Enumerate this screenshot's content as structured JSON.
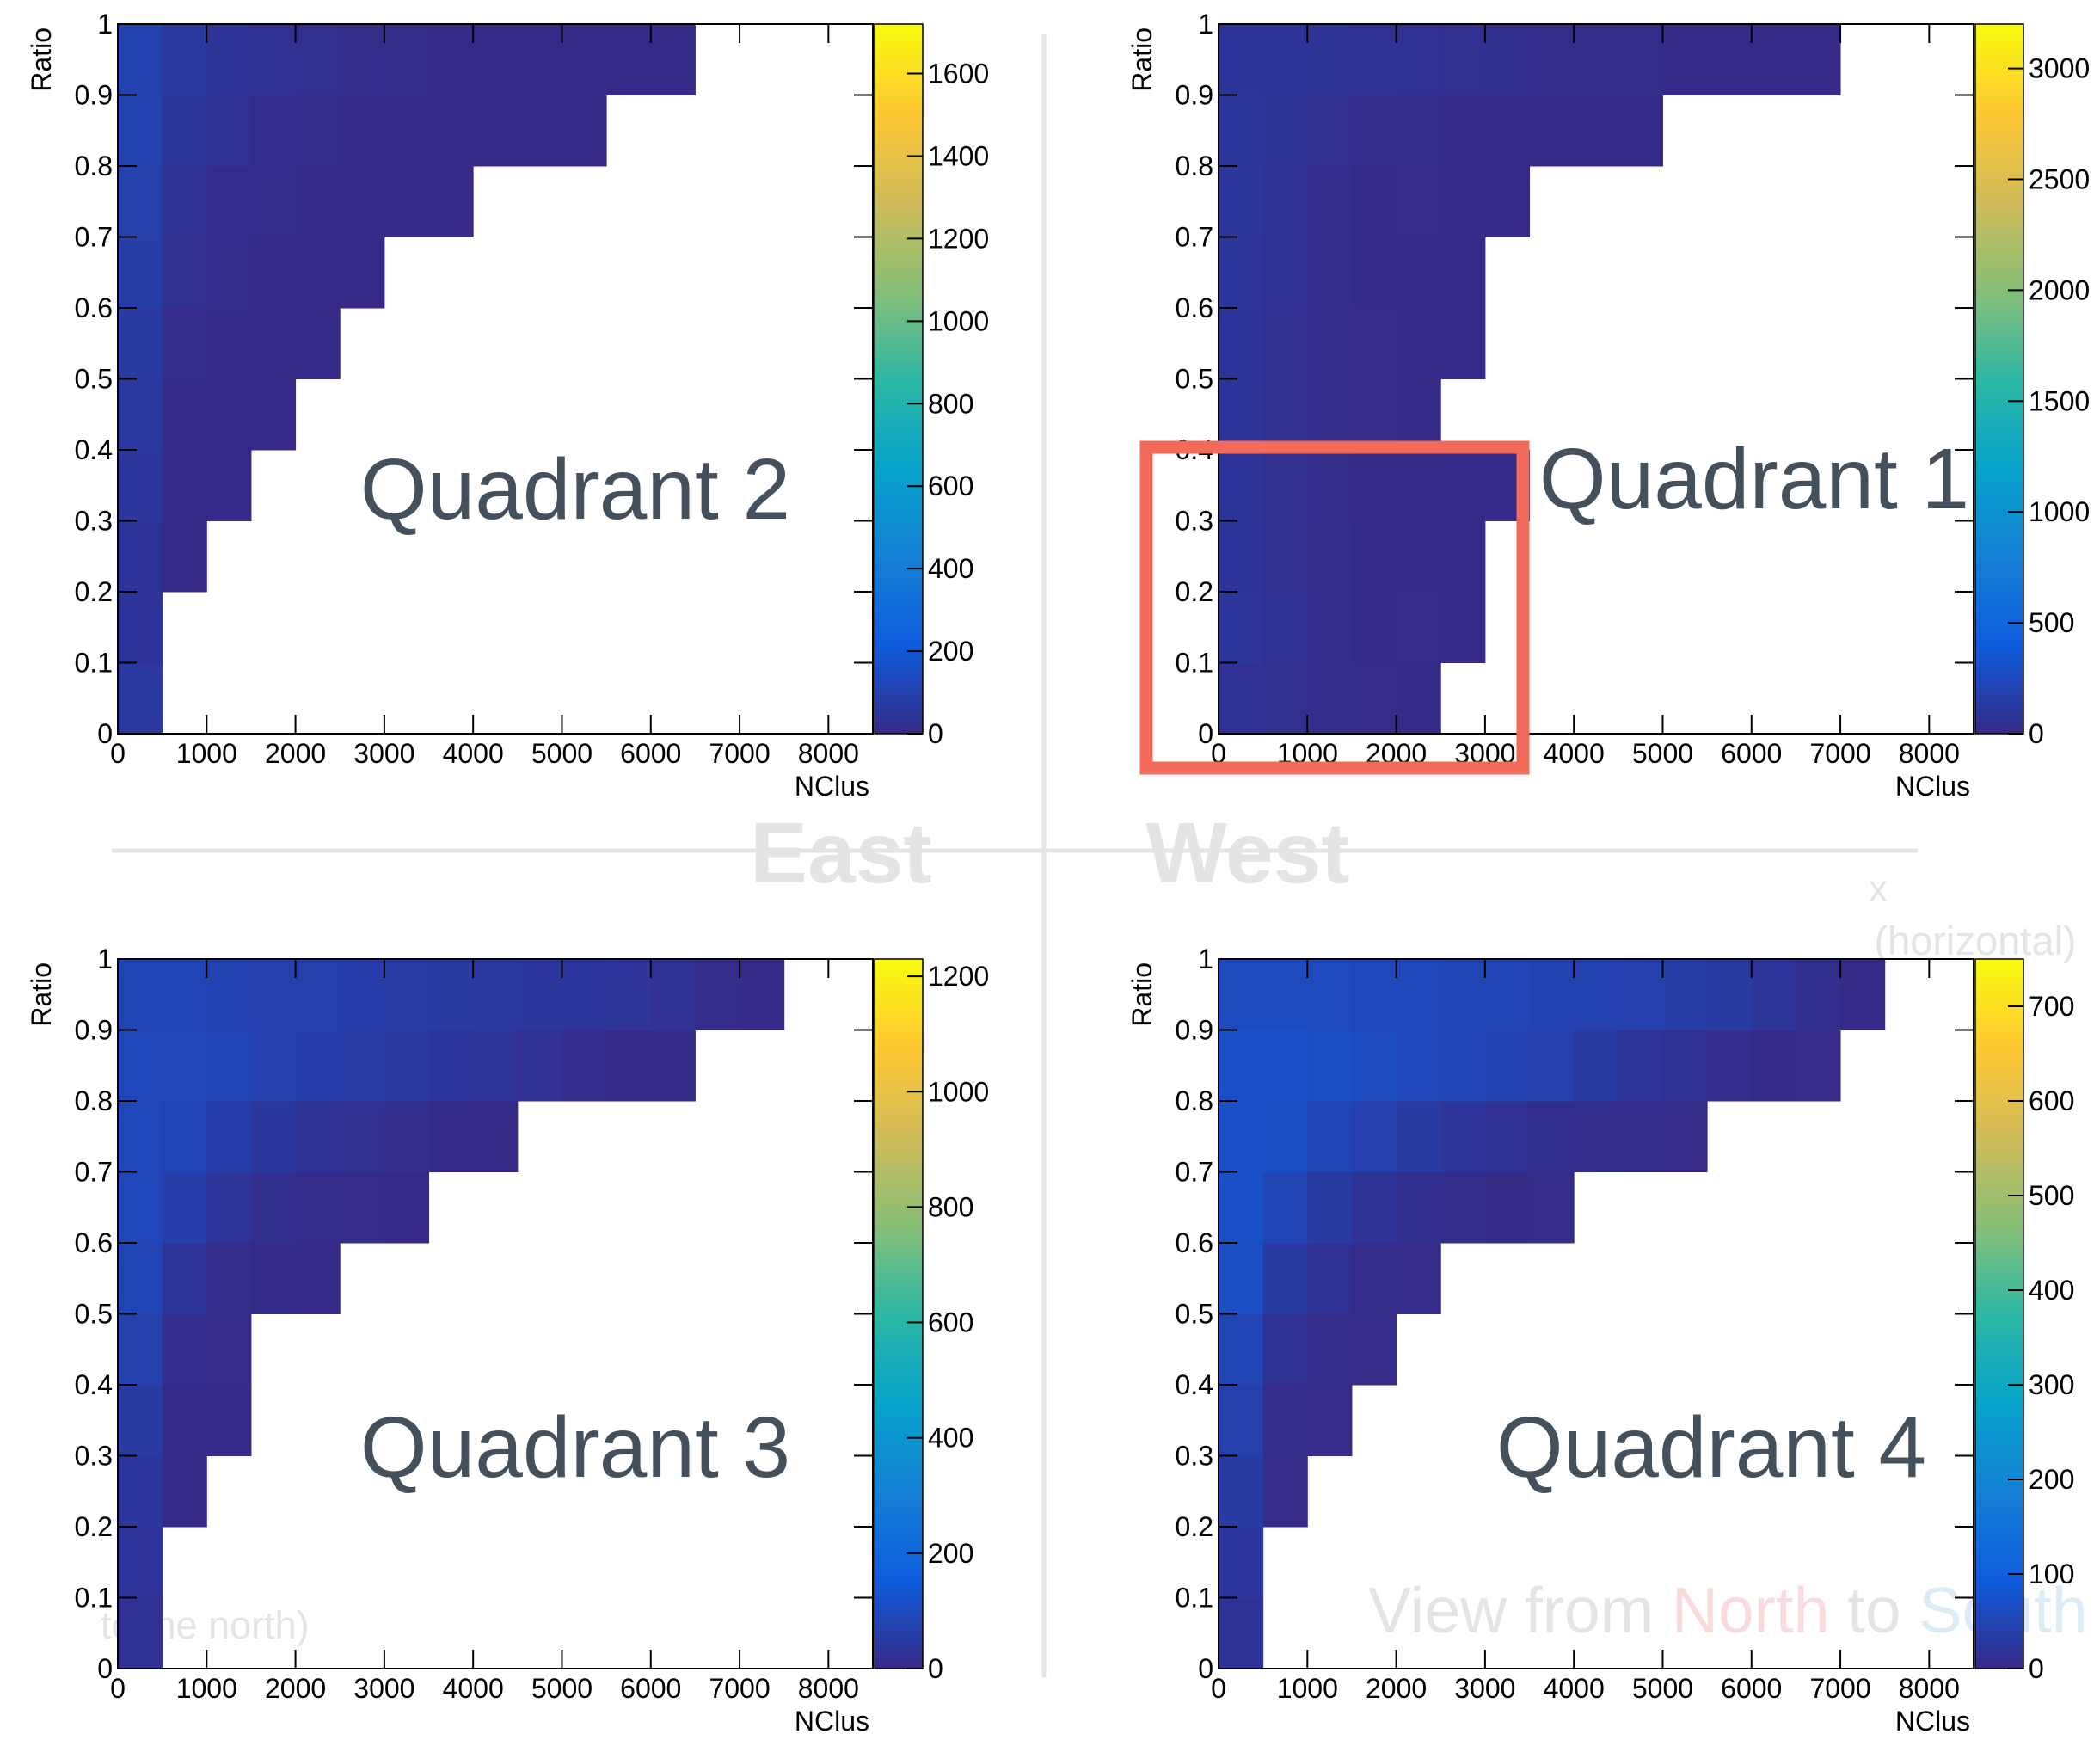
{
  "background": {
    "east": "East",
    "west": "West",
    "x_axis": "x",
    "x_axis_note": "(horizontal)",
    "view_from": "View from",
    "north": "North",
    "to": "to",
    "south": "South",
    "north_note": "to the north)"
  },
  "chart_data": [
    {
      "type": "heatmap",
      "title": "Quadrant 2",
      "xlabel": "NClus",
      "ylabel": "Ratio",
      "xlim": [
        0,
        8500
      ],
      "ylim": [
        0,
        1
      ],
      "xticks": [
        0,
        1000,
        2000,
        3000,
        4000,
        5000,
        6000,
        7000,
        8000
      ],
      "yticks": [
        0,
        0.1,
        0.2,
        0.3,
        0.4,
        0.5,
        0.6,
        0.7,
        0.8,
        0.9,
        1
      ],
      "xbins": [
        0,
        500,
        1000,
        1500,
        2000,
        2500,
        3000,
        3500,
        4000,
        4500,
        5000,
        5500,
        6000,
        6500,
        7000,
        7500,
        8000,
        8500
      ],
      "ybins": [
        0,
        0.1,
        0.2,
        0.3,
        0.4,
        0.5,
        0.6,
        0.7,
        0.8,
        0.9,
        1
      ],
      "counts": [
        [
          60,
          0,
          0,
          0,
          0,
          0,
          0,
          0,
          0,
          0,
          0,
          0,
          0,
          0,
          0,
          0,
          0
        ],
        [
          40,
          0,
          0,
          0,
          0,
          0,
          0,
          0,
          0,
          0,
          0,
          0,
          0,
          0,
          0,
          0,
          0
        ],
        [
          40,
          1,
          0,
          0,
          0,
          0,
          0,
          0,
          0,
          0,
          0,
          0,
          0,
          0,
          0,
          0,
          0
        ],
        [
          50,
          2,
          1,
          0,
          0,
          0,
          0,
          0,
          0,
          0,
          0,
          0,
          0,
          0,
          0,
          0,
          0
        ],
        [
          60,
          5,
          2,
          1,
          0,
          0,
          0,
          0,
          0,
          0,
          0,
          0,
          0,
          0,
          0,
          0,
          0
        ],
        [
          70,
          10,
          4,
          2,
          1,
          0,
          0,
          0,
          0,
          0,
          0,
          0,
          0,
          0,
          0,
          0,
          0
        ],
        [
          80,
          20,
          8,
          4,
          2,
          1,
          0,
          0,
          0,
          0,
          0,
          0,
          0,
          0,
          0,
          0,
          0
        ],
        [
          90,
          30,
          15,
          8,
          5,
          3,
          2,
          1,
          0,
          0,
          0,
          0,
          0,
          0,
          0,
          0,
          0
        ],
        [
          100,
          50,
          30,
          15,
          10,
          6,
          4,
          2,
          2,
          1,
          1,
          0,
          0,
          0,
          0,
          0,
          0
        ],
        [
          100,
          60,
          40,
          30,
          20,
          12,
          8,
          6,
          5,
          4,
          3,
          2,
          1,
          0,
          0,
          0,
          0
        ]
      ],
      "zlim": [
        0,
        1720
      ],
      "zticks": [
        0,
        200,
        400,
        600,
        800,
        1000,
        1200,
        1400,
        1600
      ]
    },
    {
      "type": "heatmap",
      "title": "Quadrant 1",
      "xlabel": "NClus",
      "ylabel": "Ratio",
      "xlim": [
        0,
        8500
      ],
      "ylim": [
        0,
        1
      ],
      "xticks": [
        0,
        1000,
        2000,
        3000,
        4000,
        5000,
        6000,
        7000,
        8000
      ],
      "yticks": [
        0,
        0.1,
        0.2,
        0.3,
        0.4,
        0.5,
        0.6,
        0.7,
        0.8,
        0.9,
        1
      ],
      "xbins": [
        0,
        500,
        1000,
        1500,
        2000,
        2500,
        3000,
        3500,
        4000,
        4500,
        5000,
        5500,
        6000,
        6500,
        7000,
        7500,
        8000,
        8500
      ],
      "ybins": [
        0,
        0.1,
        0.2,
        0.3,
        0.4,
        0.5,
        0.6,
        0.7,
        0.8,
        0.9,
        1
      ],
      "counts": [
        [
          60,
          40,
          20,
          5,
          1,
          0,
          0,
          0,
          0,
          0,
          0,
          0,
          0,
          0,
          0,
          0,
          0
        ],
        [
          90,
          50,
          25,
          10,
          4,
          2,
          0,
          0,
          0,
          0,
          0,
          0,
          0,
          0,
          0,
          0,
          0
        ],
        [
          80,
          45,
          20,
          8,
          3,
          1,
          0,
          0,
          0,
          0,
          0,
          0,
          0,
          0,
          0,
          0,
          0
        ],
        [
          80,
          40,
          15,
          6,
          2,
          1,
          1,
          0,
          0,
          0,
          0,
          0,
          0,
          0,
          0,
          0,
          0
        ],
        [
          80,
          40,
          15,
          5,
          2,
          0,
          0,
          0,
          0,
          0,
          0,
          0,
          0,
          0,
          0,
          0,
          0
        ],
        [
          80,
          45,
          15,
          5,
          2,
          1,
          0,
          0,
          0,
          0,
          0,
          0,
          0,
          0,
          0,
          0,
          0
        ],
        [
          90,
          50,
          20,
          8,
          3,
          1,
          0,
          0,
          0,
          0,
          0,
          0,
          0,
          0,
          0,
          0,
          0
        ],
        [
          90,
          60,
          25,
          10,
          5,
          3,
          1,
          0,
          0,
          0,
          0,
          0,
          0,
          0,
          0,
          0,
          0
        ],
        [
          90,
          70,
          40,
          25,
          15,
          10,
          6,
          3,
          2,
          1,
          0,
          0,
          0,
          0,
          0,
          0,
          0
        ],
        [
          80,
          80,
          70,
          60,
          50,
          40,
          30,
          25,
          20,
          15,
          10,
          8,
          3,
          1,
          0,
          0,
          0
        ]
      ],
      "zlim": [
        0,
        3200
      ],
      "zticks": [
        0,
        500,
        1000,
        1500,
        2000,
        2500,
        3000
      ]
    },
    {
      "type": "heatmap",
      "title": "Quadrant 3",
      "xlabel": "NClus",
      "ylabel": "Ratio",
      "xlim": [
        0,
        8500
      ],
      "ylim": [
        0,
        1
      ],
      "xticks": [
        0,
        1000,
        2000,
        3000,
        4000,
        5000,
        6000,
        7000,
        8000
      ],
      "yticks": [
        0,
        0.1,
        0.2,
        0.3,
        0.4,
        0.5,
        0.6,
        0.7,
        0.8,
        0.9,
        1
      ],
      "xbins": [
        0,
        500,
        1000,
        1500,
        2000,
        2500,
        3000,
        3500,
        4000,
        4500,
        5000,
        5500,
        6000,
        6500,
        7000,
        7500,
        8000,
        8500
      ],
      "ybins": [
        0,
        0.1,
        0.2,
        0.3,
        0.4,
        0.5,
        0.6,
        0.7,
        0.8,
        0.9,
        1
      ],
      "counts": [
        [
          20,
          0,
          0,
          0,
          0,
          0,
          0,
          0,
          0,
          0,
          0,
          0,
          0,
          0,
          0,
          0,
          0
        ],
        [
          30,
          0,
          0,
          0,
          0,
          0,
          0,
          0,
          0,
          0,
          0,
          0,
          0,
          0,
          0,
          0,
          0
        ],
        [
          40,
          1,
          0,
          0,
          0,
          0,
          0,
          0,
          0,
          0,
          0,
          0,
          0,
          0,
          0,
          0,
          0
        ],
        [
          50,
          3,
          1,
          0,
          0,
          0,
          0,
          0,
          0,
          0,
          0,
          0,
          0,
          0,
          0,
          0,
          0
        ],
        [
          70,
          10,
          2,
          0,
          0,
          0,
          0,
          0,
          0,
          0,
          0,
          0,
          0,
          0,
          0,
          0,
          0
        ],
        [
          80,
          30,
          8,
          3,
          1,
          0,
          0,
          0,
          0,
          0,
          0,
          0,
          0,
          0,
          0,
          0,
          0
        ],
        [
          90,
          60,
          30,
          12,
          5,
          2,
          1,
          0,
          0,
          0,
          0,
          0,
          0,
          0,
          0,
          0,
          0
        ],
        [
          90,
          80,
          60,
          40,
          25,
          15,
          8,
          3,
          1,
          0,
          0,
          0,
          0,
          0,
          0,
          0,
          0
        ],
        [
          90,
          85,
          80,
          70,
          60,
          55,
          45,
          35,
          30,
          20,
          10,
          4,
          1,
          0,
          0,
          0,
          0
        ],
        [
          80,
          80,
          75,
          70,
          65,
          60,
          55,
          50,
          45,
          40,
          35,
          30,
          20,
          5,
          1,
          0,
          0
        ]
      ],
      "zlim": [
        0,
        1230
      ],
      "zticks": [
        0,
        200,
        400,
        600,
        800,
        1000,
        1200
      ]
    },
    {
      "type": "heatmap",
      "title": "Quadrant 4",
      "xlabel": "NClus",
      "ylabel": "Ratio",
      "xlim": [
        0,
        8500
      ],
      "ylim": [
        0,
        1
      ],
      "xticks": [
        0,
        1000,
        2000,
        3000,
        4000,
        5000,
        6000,
        7000,
        8000
      ],
      "yticks": [
        0,
        0.1,
        0.2,
        0.3,
        0.4,
        0.5,
        0.6,
        0.7,
        0.8,
        0.9,
        1
      ],
      "xbins": [
        0,
        500,
        1000,
        1500,
        2000,
        2500,
        3000,
        3500,
        4000,
        4500,
        5000,
        5500,
        6000,
        6500,
        7000,
        7500,
        8000,
        8500
      ],
      "ybins": [
        0,
        0.1,
        0.2,
        0.3,
        0.4,
        0.5,
        0.6,
        0.7,
        0.8,
        0.9,
        1
      ],
      "counts": [
        [
          15,
          0,
          0,
          0,
          0,
          0,
          0,
          0,
          0,
          0,
          0,
          0,
          0,
          0,
          0,
          0,
          0
        ],
        [
          25,
          0,
          0,
          0,
          0,
          0,
          0,
          0,
          0,
          0,
          0,
          0,
          0,
          0,
          0,
          0,
          0
        ],
        [
          30,
          1,
          0,
          0,
          0,
          0,
          0,
          0,
          0,
          0,
          0,
          0,
          0,
          0,
          0,
          0,
          0
        ],
        [
          40,
          4,
          1,
          0,
          0,
          0,
          0,
          0,
          0,
          0,
          0,
          0,
          0,
          0,
          0,
          0,
          0
        ],
        [
          50,
          12,
          3,
          1,
          0,
          0,
          0,
          0,
          0,
          0,
          0,
          0,
          0,
          0,
          0,
          0,
          0
        ],
        [
          65,
          30,
          12,
          4,
          1,
          0,
          0,
          0,
          0,
          0,
          0,
          0,
          0,
          0,
          0,
          0,
          0
        ],
        [
          70,
          50,
          30,
          15,
          8,
          4,
          2,
          1,
          0,
          0,
          0,
          0,
          0,
          0,
          0,
          0,
          0
        ],
        [
          70,
          65,
          50,
          40,
          30,
          20,
          12,
          8,
          5,
          3,
          1,
          0,
          0,
          0,
          0,
          0,
          0
        ],
        [
          70,
          70,
          65,
          60,
          55,
          50,
          45,
          40,
          30,
          20,
          12,
          6,
          2,
          1,
          0,
          0,
          0
        ],
        [
          60,
          60,
          60,
          55,
          55,
          50,
          50,
          45,
          45,
          40,
          35,
          30,
          20,
          8,
          2,
          0,
          0
        ]
      ],
      "zlim": [
        0,
        750
      ],
      "zticks": [
        0,
        100,
        200,
        300,
        400,
        500,
        600,
        700
      ]
    }
  ],
  "colorscale": [
    "#352a87",
    "#0f5cdd",
    "#1481d6",
    "#06a4ca",
    "#2eb7a4",
    "#87bf77",
    "#d1bb59",
    "#fec832",
    "#f9fb0e"
  ]
}
